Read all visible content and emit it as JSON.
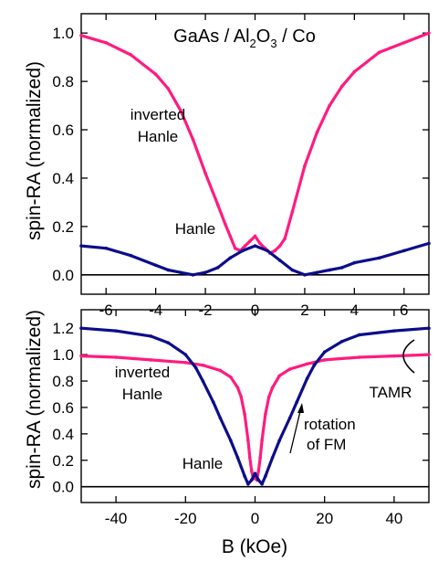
{
  "figure": {
    "ylabel_top": "spin-RA (normalized)",
    "ylabel_bottom": "spin-RA (normalized)",
    "xlabel": "B (kOe)"
  },
  "chart_data": [
    {
      "type": "line",
      "title_parts": [
        "GaAs / Al",
        "2",
        "O",
        "3",
        " / Co"
      ],
      "xlabel": "",
      "ylabel": "spin-RA (normalized)",
      "xlim": [
        -7,
        7
      ],
      "ylim": [
        -0.08,
        1.08
      ],
      "xticks": [
        -6,
        -4,
        -2,
        0,
        2,
        4,
        6
      ],
      "xtick_labels": [
        "-6",
        "-4",
        "-2",
        "0",
        "2",
        "4",
        "6"
      ],
      "yticks": [
        0.0,
        0.2,
        0.4,
        0.6,
        0.8,
        1.0
      ],
      "ytick_labels": [
        "0.0",
        "0.2",
        "0.4",
        "0.6",
        "0.8",
        "1.0"
      ],
      "baseline": 0,
      "colors": {
        "inverted_hanle": "#ff1b7f",
        "hanle": "#0d0d8c"
      },
      "annotations": {
        "inverted_hanle": [
          "inverted",
          "Hanle"
        ],
        "hanle": "Hanle"
      },
      "series": [
        {
          "name": "inverted Hanle",
          "color": "#ff1b7f",
          "x": [
            -7,
            -6,
            -5,
            -4,
            -3.5,
            -3,
            -2.5,
            -2,
            -1.5,
            -1.2,
            -1,
            -0.8,
            -0.6,
            -0.4,
            -0.2,
            0,
            0.2,
            0.4,
            0.6,
            0.8,
            1,
            1.2,
            1.5,
            2,
            2.5,
            3,
            3.5,
            4,
            5,
            6,
            7
          ],
          "y": [
            0.99,
            0.96,
            0.91,
            0.83,
            0.77,
            0.68,
            0.56,
            0.42,
            0.29,
            0.21,
            0.16,
            0.11,
            0.1,
            0.12,
            0.14,
            0.16,
            0.13,
            0.11,
            0.09,
            0.1,
            0.12,
            0.15,
            0.26,
            0.45,
            0.59,
            0.7,
            0.78,
            0.84,
            0.92,
            0.96,
            1.0
          ]
        },
        {
          "name": "Hanle",
          "color": "#0d0d8c",
          "x": [
            -7,
            -6,
            -5,
            -4,
            -3.5,
            -3,
            -2.5,
            -2,
            -1.5,
            -1,
            -0.5,
            0,
            0.5,
            1,
            1.5,
            2,
            2.5,
            3,
            3.5,
            4,
            5,
            6,
            7
          ],
          "y": [
            0.12,
            0.11,
            0.08,
            0.04,
            0.02,
            0.01,
            0.0,
            0.01,
            0.03,
            0.07,
            0.1,
            0.12,
            0.1,
            0.06,
            0.02,
            0.0,
            0.01,
            0.02,
            0.03,
            0.05,
            0.07,
            0.1,
            0.13
          ]
        }
      ]
    },
    {
      "type": "line",
      "xlabel": "B (kOe)",
      "ylabel": "spin-RA (normalized)",
      "xlim": [
        -50,
        50
      ],
      "ylim": [
        -0.12,
        1.34
      ],
      "xticks": [
        -40,
        -20,
        0,
        20,
        40
      ],
      "xtick_labels": [
        "-40",
        "-20",
        "0",
        "20",
        "40"
      ],
      "yticks": [
        0.0,
        0.2,
        0.4,
        0.6,
        0.8,
        1.0,
        1.2
      ],
      "ytick_labels": [
        "0.0",
        "0.2",
        "0.4",
        "0.6",
        "0.8",
        "1.0",
        "1.2"
      ],
      "baseline": 0,
      "annotations": {
        "inverted_hanle": [
          "inverted",
          "Hanle"
        ],
        "hanle": "Hanle",
        "rotation": [
          "rotation",
          "of FM"
        ],
        "tamr": "TAMR"
      },
      "series": [
        {
          "name": "inverted Hanle",
          "color": "#ff1b7f",
          "x": [
            -50,
            -40,
            -30,
            -20,
            -15,
            -10,
            -7,
            -5,
            -4,
            -3,
            -2,
            -1.5,
            -1,
            -0.5,
            0,
            0.5,
            1,
            1.5,
            2,
            3,
            4,
            5,
            7,
            10,
            15,
            20,
            30,
            40,
            50
          ],
          "y": [
            0.99,
            0.98,
            0.96,
            0.94,
            0.92,
            0.88,
            0.83,
            0.75,
            0.68,
            0.55,
            0.35,
            0.22,
            0.12,
            0.06,
            0.07,
            0.05,
            0.12,
            0.22,
            0.35,
            0.55,
            0.68,
            0.75,
            0.84,
            0.89,
            0.93,
            0.96,
            0.98,
            0.99,
            1.0
          ]
        },
        {
          "name": "Hanle",
          "color": "#0d0d8c",
          "x": [
            -50,
            -40,
            -30,
            -25,
            -20,
            -17,
            -15,
            -12,
            -10,
            -7,
            -5,
            -3,
            -2,
            -1,
            0,
            1,
            2,
            3,
            5,
            7,
            10,
            12,
            15,
            17,
            20,
            25,
            30,
            40,
            50
          ],
          "y": [
            1.2,
            1.18,
            1.14,
            1.09,
            1.0,
            0.9,
            0.8,
            0.64,
            0.52,
            0.35,
            0.22,
            0.08,
            0.02,
            0.05,
            0.1,
            0.05,
            0.02,
            0.08,
            0.22,
            0.35,
            0.52,
            0.64,
            0.82,
            0.92,
            1.02,
            1.1,
            1.15,
            1.18,
            1.2
          ]
        }
      ]
    }
  ]
}
